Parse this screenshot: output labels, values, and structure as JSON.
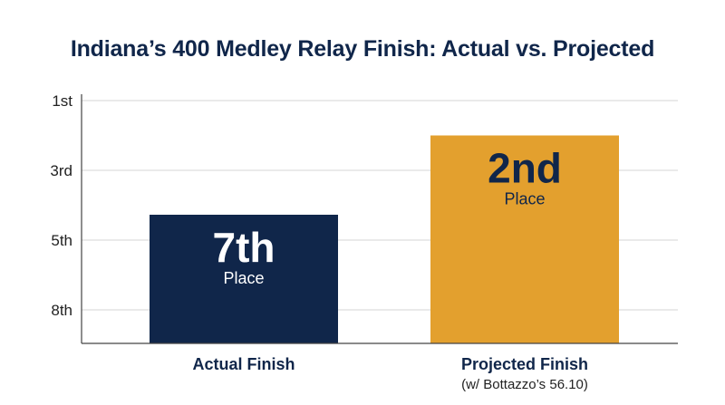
{
  "chart_data": {
    "type": "bar",
    "title": "Indiana’s 400 Medley Relay Finish: Actual vs. Projected",
    "xlabel": "",
    "ylabel": "",
    "y_axis": "place (1st at top)",
    "yticks": [
      {
        "value": 1,
        "label": "1st"
      },
      {
        "value": 3,
        "label": "3rd"
      },
      {
        "value": 5,
        "label": "5th"
      },
      {
        "value": 8,
        "label": "8th"
      }
    ],
    "categories": [
      "Actual Finish",
      "Projected Finish"
    ],
    "category_sublabels": [
      "",
      "(w/ Bottazzo’s 56.10)"
    ],
    "values": [
      7,
      2
    ],
    "value_labels": [
      "7th",
      "2nd"
    ],
    "value_sublabels": [
      "Place",
      "Place"
    ],
    "colors": {
      "actual": "#10264a",
      "projected": "#e3a02e",
      "actual_text": "#ffffff",
      "projected_text": "#10264a",
      "grid": "#d6d6d6",
      "axis": "#444444"
    },
    "grid": true,
    "legend": "none"
  }
}
